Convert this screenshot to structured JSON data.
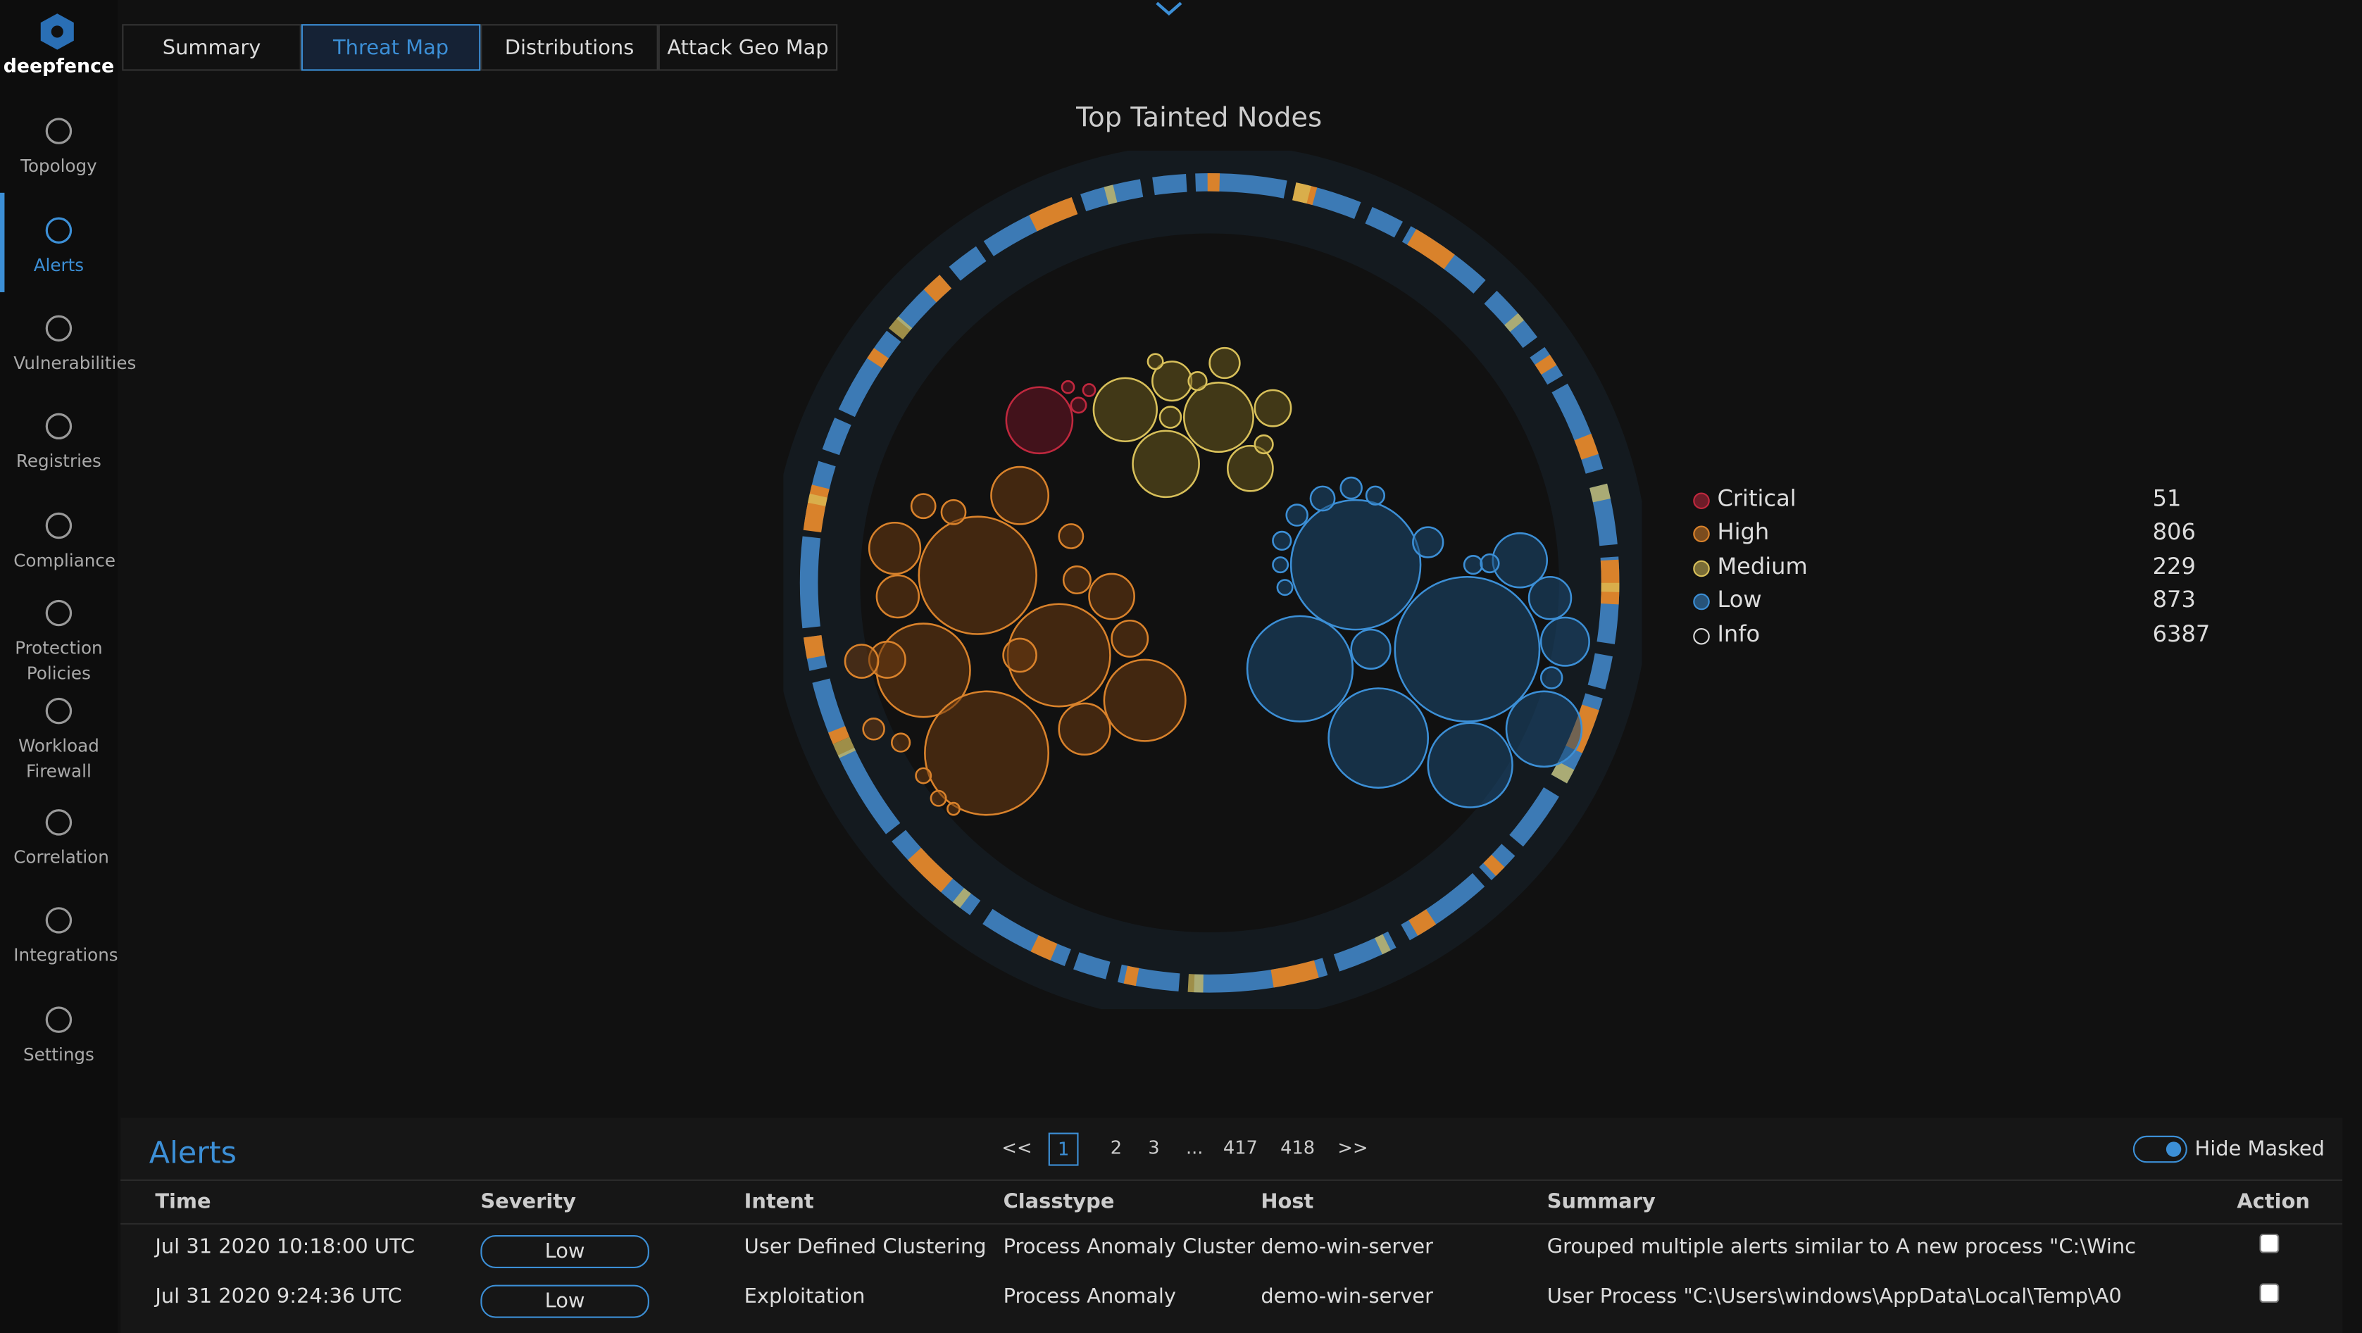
{
  "sidebar": {
    "brand": "deepfence",
    "items": [
      "Topology",
      "Alerts",
      "Vulnerabilities",
      "Registries",
      "Compliance",
      "Protection Policies",
      "Workload Firewall",
      "Correlation",
      "Integrations",
      "Settings"
    ]
  },
  "tabs": [
    "Summary",
    "Threat Map",
    "Distributions",
    "Attack Geo Map"
  ],
  "threat_map": {
    "title": "Top Tainted Nodes",
    "legend": [
      {
        "label": "Critical",
        "count": 51
      },
      {
        "label": "High",
        "count": 806
      },
      {
        "label": "Medium",
        "count": 229
      },
      {
        "label": "Low",
        "count": 873
      },
      {
        "label": "Info",
        "count": 6387
      }
    ]
  },
  "alerts": {
    "title": "Alerts",
    "pagination": [
      "<<",
      1,
      2,
      3,
      "...",
      417,
      418,
      ">>"
    ],
    "toggle": "Hide Masked",
    "columns": [
      "Time",
      "Severity",
      "Intent",
      "Classtype",
      "Host",
      "Summary",
      "Action"
    ],
    "rows": [
      [
        "Jul 31 2020 10:18:00 UTC",
        "Low",
        "User Defined Clustering",
        "Process Anomaly Cluster",
        "demo-win-server",
        "Grouped multiple alerts similar to A new process \"C:\\Winc"
      ],
      [
        "Jul 31 2020 9:24:36 UTC",
        "Low",
        "Exploitation",
        "Process Anomaly",
        "demo-win-server",
        "User Process \"C:\\Users\\windows\\AppData\\Local\\Temp\\A0"
      ]
    ]
  }
}
